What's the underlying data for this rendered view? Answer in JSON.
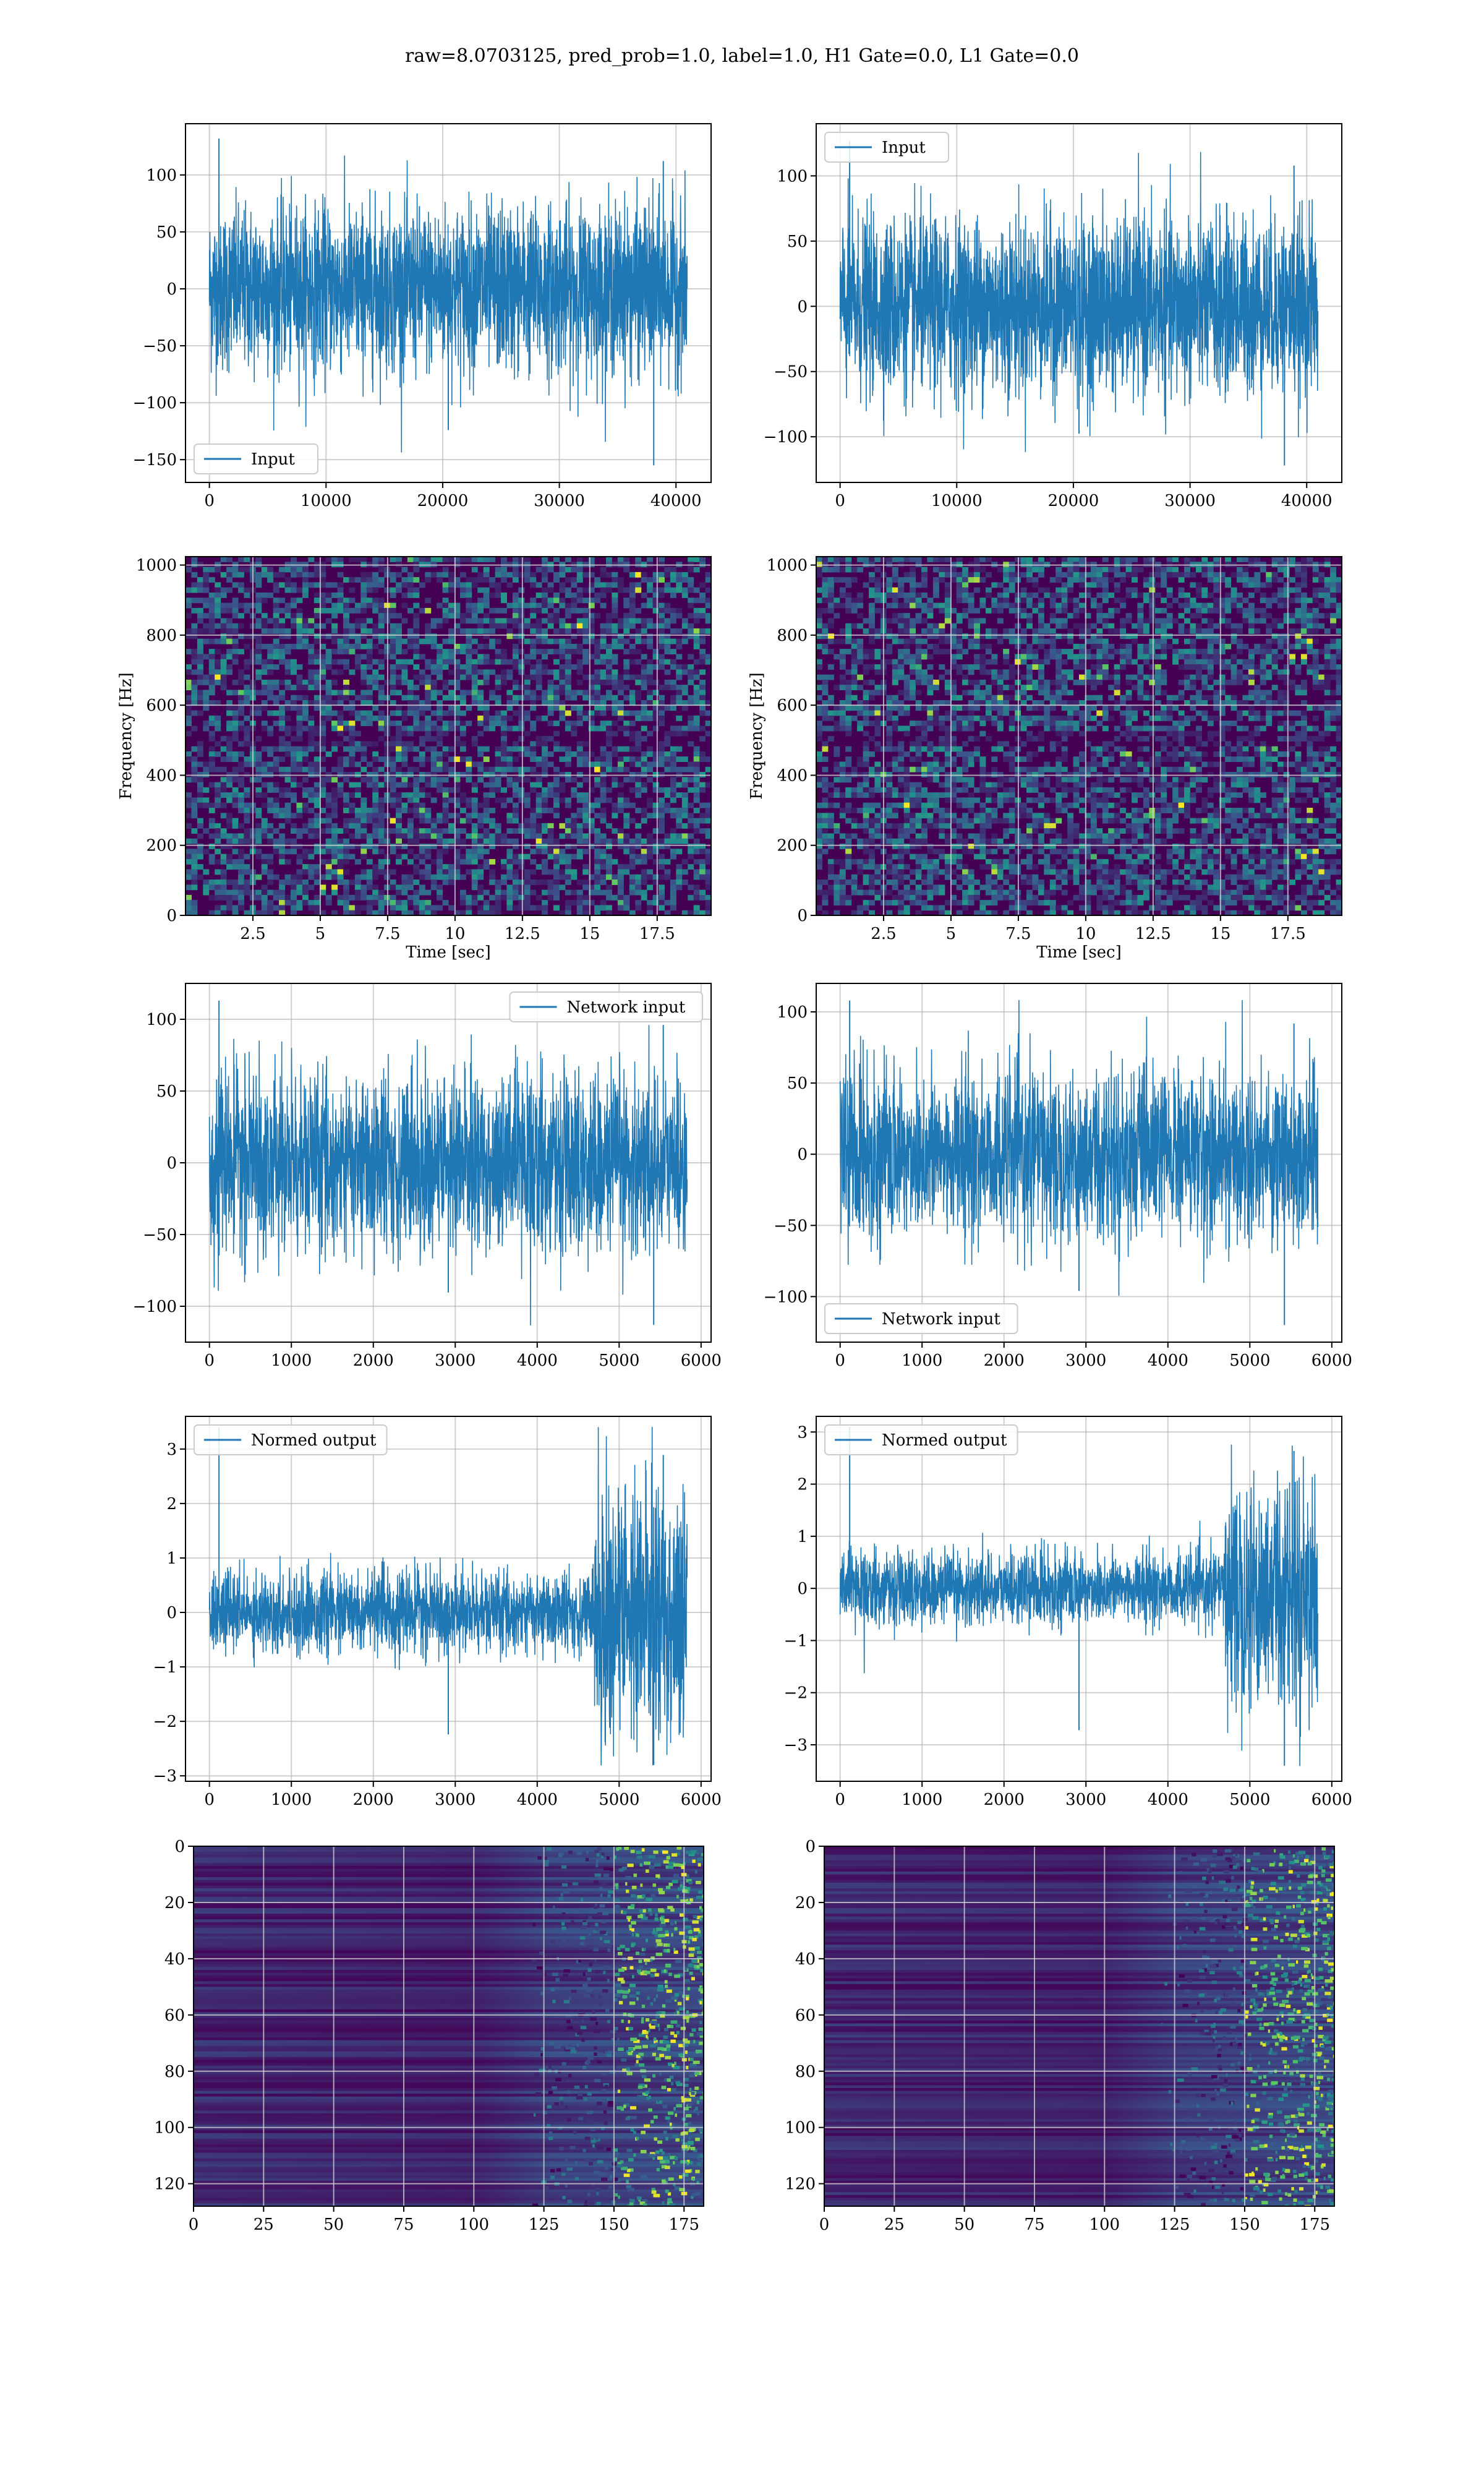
{
  "title": "raw=8.0703125, pred_prob=1.0, label=1.0, H1 Gate=0.0, L1 Gate=0.0",
  "colors": {
    "line": "#1f77b4",
    "viridis_low": "#440154",
    "viridis_mid": "#21918c",
    "viridis_high": "#fde725",
    "grid": "#b0b0b0"
  },
  "chart_data": [
    {
      "id": "h1_input",
      "type": "line",
      "series": [
        {
          "name": "Input",
          "values_description_min": -155,
          "values_description_max": 132
        }
      ],
      "x": [
        0,
        40960
      ],
      "envelope": [
        [
          0,
          -40,
          40
        ],
        [
          40960,
          -40,
          40
        ]
      ],
      "peak_range": [
        -155,
        132
      ],
      "xticks": [
        0,
        10000,
        20000,
        30000,
        40000
      ],
      "yticks": [
        -150,
        -100,
        -50,
        0,
        50,
        100
      ],
      "xlim": [
        -2048,
        43008
      ],
      "ylim": [
        -170,
        145
      ],
      "legend": "lower left",
      "grid": true
    },
    {
      "id": "l1_input",
      "type": "line",
      "series": [
        {
          "name": "Input"
        }
      ],
      "x": [
        0,
        40960
      ],
      "peak_range": [
        -122,
        127
      ],
      "xticks": [
        0,
        10000,
        20000,
        30000,
        40000
      ],
      "yticks": [
        -100,
        -50,
        0,
        50,
        100
      ],
      "xlim": [
        -2048,
        43008
      ],
      "ylim": [
        -135,
        140
      ],
      "legend": "upper left",
      "grid": true
    },
    {
      "id": "h1_spectrogram",
      "type": "heatmap",
      "xlabel": "Time [sec]",
      "ylabel": "Frequency [Hz]",
      "xticks": [
        2.5,
        5.0,
        7.5,
        10.0,
        12.5,
        15.0,
        17.5
      ],
      "yticks": [
        0,
        200,
        400,
        600,
        800,
        1000
      ],
      "xlim": [
        0,
        19.5
      ],
      "ylim": [
        0,
        1024
      ],
      "grid": true
    },
    {
      "id": "l1_spectrogram",
      "type": "heatmap",
      "xlabel": "Time [sec]",
      "ylabel": "Frequency [Hz]",
      "xticks": [
        2.5,
        5.0,
        7.5,
        10.0,
        12.5,
        15.0,
        17.5
      ],
      "yticks": [
        0,
        200,
        400,
        600,
        800,
        1000
      ],
      "xlim": [
        0,
        19.5
      ],
      "ylim": [
        0,
        1024
      ],
      "grid": true
    },
    {
      "id": "h1_network_input",
      "type": "line",
      "series": [
        {
          "name": "Network input"
        }
      ],
      "x": [
        0,
        5830
      ],
      "peak_range": [
        -113,
        113
      ],
      "xticks": [
        0,
        1000,
        2000,
        3000,
        4000,
        5000,
        6000
      ],
      "yticks": [
        -100,
        -50,
        0,
        50,
        100
      ],
      "xlim": [
        -292,
        6122
      ],
      "ylim": [
        -125,
        125
      ],
      "legend": "upper right",
      "grid": true
    },
    {
      "id": "l1_network_input",
      "type": "line",
      "series": [
        {
          "name": "Network input"
        }
      ],
      "x": [
        0,
        5830
      ],
      "peak_range": [
        -120,
        108
      ],
      "xticks": [
        0,
        1000,
        2000,
        3000,
        4000,
        5000,
        6000
      ],
      "yticks": [
        -100,
        -50,
        0,
        50,
        100
      ],
      "xlim": [
        -292,
        6122
      ],
      "ylim": [
        -132,
        120
      ],
      "legend": "lower left",
      "grid": true
    },
    {
      "id": "h1_normed_output",
      "type": "line",
      "series": [
        {
          "name": "Normed output"
        }
      ],
      "x": [
        0,
        5830
      ],
      "quiet_amplitude": 0.8,
      "loud_start": 4700,
      "loud_amplitude": 2.2,
      "peak_range": [
        -2.8,
        3.4
      ],
      "xticks": [
        0,
        1000,
        2000,
        3000,
        4000,
        5000,
        6000
      ],
      "yticks": [
        -3,
        -2,
        -1,
        0,
        1,
        2,
        3
      ],
      "xlim": [
        -292,
        6122
      ],
      "ylim": [
        -3.1,
        3.6
      ],
      "legend": "upper left",
      "grid": true
    },
    {
      "id": "l1_normed_output",
      "type": "line",
      "series": [
        {
          "name": "Normed output"
        }
      ],
      "x": [
        0,
        5830
      ],
      "quiet_amplitude": 0.75,
      "loud_start": 4700,
      "loud_amplitude": 2.0,
      "peak_range": [
        -3.4,
        3.1
      ],
      "xticks": [
        0,
        1000,
        2000,
        3000,
        4000,
        5000,
        6000
      ],
      "yticks": [
        -3,
        -2,
        -1,
        0,
        1,
        2,
        3
      ],
      "xlim": [
        -292,
        6122
      ],
      "ylim": [
        -3.7,
        3.3
      ],
      "legend": "upper left",
      "grid": true
    },
    {
      "id": "h1_feature_map",
      "type": "heatmap",
      "xticks": [
        0,
        25,
        50,
        75,
        100,
        125,
        150,
        175
      ],
      "yticks": [
        0,
        20,
        40,
        60,
        80,
        100,
        120
      ],
      "xlim": [
        0,
        182
      ],
      "ylim": [
        128,
        0
      ],
      "bright_from": 150,
      "grid": true
    },
    {
      "id": "l1_feature_map",
      "type": "heatmap",
      "xticks": [
        0,
        25,
        50,
        75,
        100,
        125,
        150,
        175
      ],
      "yticks": [
        0,
        20,
        40,
        60,
        80,
        100,
        120
      ],
      "xlim": [
        0,
        182
      ],
      "ylim": [
        128,
        0
      ],
      "bright_from": 150,
      "grid": true
    }
  ]
}
